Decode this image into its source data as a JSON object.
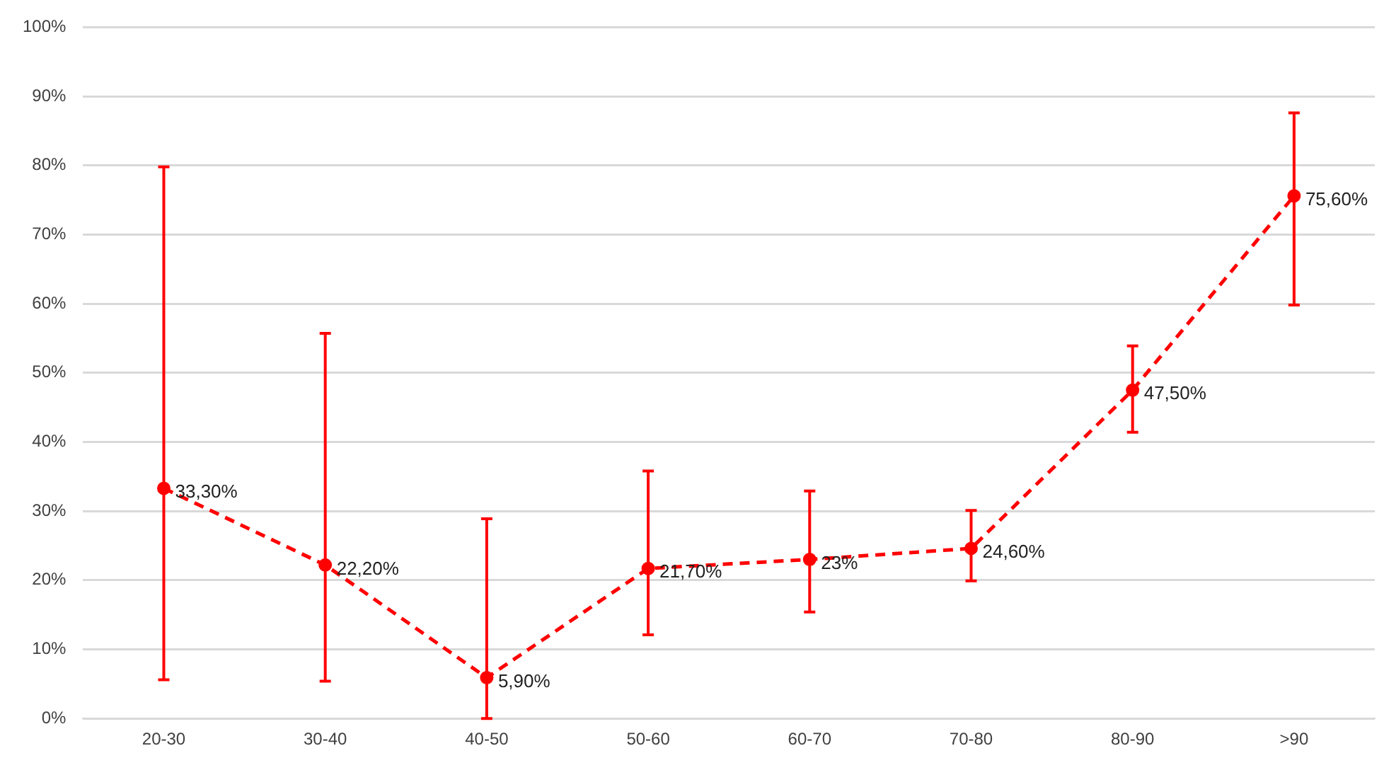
{
  "chart_data": {
    "type": "line",
    "categories": [
      "20-30",
      "30-40",
      "40-50",
      "50-60",
      "60-70",
      "70-80",
      "80-90",
      ">90"
    ],
    "series": [
      {
        "color": "#ff0000",
        "values": [
          33.3,
          22.2,
          5.9,
          21.7,
          23,
          24.6,
          47.5,
          75.6
        ],
        "value_labels": [
          "33,30%",
          "22,20%",
          "5,90%",
          "21,70%",
          "23%",
          "24,60%",
          "47,50%",
          "75,60%"
        ],
        "errors": [
          [
            5.6,
            79.8
          ],
          [
            5.4,
            55.7
          ],
          [
            0,
            28.9
          ],
          [
            12.1,
            35.8
          ],
          [
            15.4,
            32.9
          ],
          [
            19.9,
            30.1
          ],
          [
            41.4,
            53.9
          ],
          [
            59.8,
            87.6
          ]
        ]
      }
    ],
    "ylim": [
      0,
      100
    ],
    "yticks": [
      {
        "value": 0,
        "label": "0%"
      },
      {
        "value": 10,
        "label": "10%"
      },
      {
        "value": 20,
        "label": "20%"
      },
      {
        "value": 30,
        "label": "30%"
      },
      {
        "value": 40,
        "label": "40%"
      },
      {
        "value": 50,
        "label": "50%"
      },
      {
        "value": 60,
        "label": "60%"
      },
      {
        "value": 70,
        "label": "70%"
      },
      {
        "value": 80,
        "label": "80%"
      },
      {
        "value": 90,
        "label": "90%"
      },
      {
        "value": 100,
        "label": "100%"
      }
    ],
    "grid": "y",
    "legend": false,
    "marker": "circle",
    "line_style": "dashed"
  }
}
